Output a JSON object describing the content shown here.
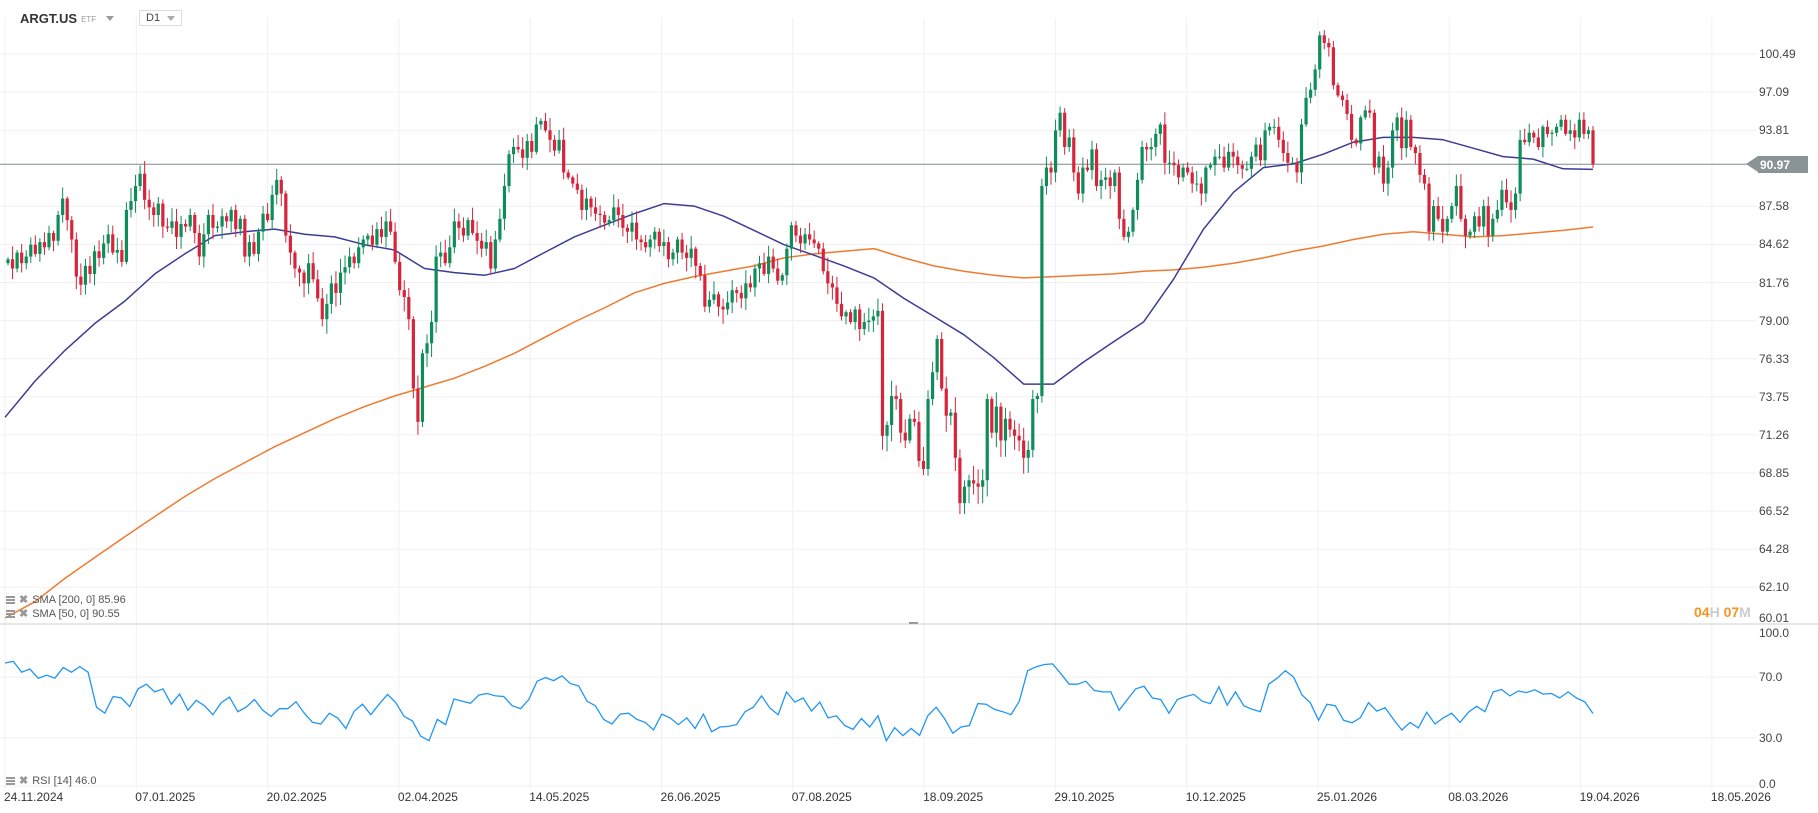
{
  "header": {
    "symbol": "ARGT.US",
    "type": "ETF",
    "timeframe": "D1"
  },
  "timer": {
    "hours": "04",
    "h": "H",
    "minutes": "07",
    "m": "M"
  },
  "colors": {
    "up": "#0e8c5a",
    "down": "#d6243a",
    "sma50": "#3c3c96",
    "sma200": "#f07a30",
    "rsi": "#2196f3",
    "last_price_bg": "#8a9396",
    "timer": "#f7931e"
  },
  "chart_data": [
    {
      "type": "candlestick",
      "y_scale": "log",
      "ylim": [
        60.01,
        103.5
      ],
      "grid": true,
      "y_ticks": [
        "100.49",
        "97.09",
        "93.81",
        "90.97",
        "87.58",
        "84.62",
        "81.76",
        "79.00",
        "76.33",
        "73.75",
        "71.26",
        "68.85",
        "66.52",
        "64.28",
        "62.10",
        "60.01"
      ],
      "x_ticks": [
        "24.11.2024",
        "07.01.2025",
        "20.02.2025",
        "02.04.2025",
        "14.05.2025",
        "26.06.2025",
        "07.08.2025",
        "18.09.2025",
        "29.10.2025",
        "10.12.2025",
        "25.01.2026",
        "08.03.2026",
        "19.04.2026",
        "18.05.2026"
      ],
      "last_price": 90.97,
      "closes": [
        83.5,
        82.8,
        84.0,
        83.2,
        83.7,
        84.6,
        83.9,
        84.8,
        84.4,
        85.5,
        84.9,
        86.9,
        88.2,
        86.5,
        85.0,
        82.2,
        81.6,
        83.0,
        82.4,
        84.1,
        83.6,
        84.7,
        85.4,
        84.0,
        84.2,
        83.3,
        87.3,
        88.0,
        89.2,
        90.2,
        88.1,
        87.5,
        86.9,
        87.8,
        86.0,
        85.9,
        86.4,
        85.2,
        86.2,
        86.0,
        86.9,
        85.5,
        83.7,
        85.4,
        86.9,
        85.9,
        86.0,
        86.8,
        86.4,
        87.3,
        85.8,
        86.6,
        83.7,
        84.8,
        83.9,
        85.6,
        87.0,
        86.5,
        88.5,
        89.7,
        88.6,
        85.3,
        84.0,
        82.8,
        82.5,
        81.7,
        83.2,
        82.0,
        80.6,
        79.1,
        80.2,
        81.7,
        81.0,
        82.5,
        82.9,
        83.7,
        83.2,
        84.4,
        85.0,
        85.3,
        84.6,
        85.8,
        85.2,
        86.4,
        85.6,
        83.3,
        81.2,
        80.7,
        79.1,
        74.3,
        72.1,
        76.7,
        77.4,
        78.9,
        83.7,
        84.0,
        83.2,
        84.4,
        86.4,
        85.9,
        85.3,
        86.5,
        85.5,
        84.9,
        84.3,
        84.8,
        82.8,
        85.0,
        86.6,
        89.2,
        91.8,
        92.4,
        92.2,
        91.5,
        92.9,
        92.0,
        94.3,
        94.6,
        93.8,
        93.0,
        92.1,
        93.0,
        90.3,
        89.9,
        89.4,
        88.9,
        87.3,
        88.2,
        87.5,
        87.0,
        86.9,
        86.3,
        86.5,
        87.5,
        86.9,
        85.9,
        85.6,
        86.3,
        85.0,
        84.8,
        84.4,
        85.0,
        85.6,
        84.5,
        84.8,
        83.5,
        84.0,
        85.0,
        84.0,
        83.6,
        84.3,
        83.0,
        82.3,
        80.0,
        80.5,
        80.9,
        80.0,
        79.8,
        80.3,
        81.2,
        81.0,
        80.6,
        81.7,
        81.4,
        82.8,
        83.2,
        82.4,
        83.7,
        82.8,
        81.9,
        82.3,
        84.3,
        86.1,
        85.3,
        84.7,
        85.4,
        85.0,
        84.7,
        84.3,
        82.6,
        81.7,
        81.4,
        80.2,
        79.3,
        79.6,
        78.9,
        79.8,
        78.4,
        78.9,
        79.0,
        79.3,
        79.7,
        71.2,
        71.9,
        73.8,
        73.6,
        71.4,
        70.9,
        72.3,
        72.1,
        69.6,
        69.1,
        73.6,
        75.4,
        77.7,
        74.3,
        72.5,
        72.7,
        69.8,
        67.0,
        68.0,
        68.4,
        68.2,
        68.0,
        68.4,
        73.6,
        71.4,
        73.1,
        70.9,
        72.3,
        71.6,
        71.2,
        70.9,
        69.8,
        70.3,
        73.6,
        73.8,
        89.2,
        90.7,
        90.3,
        93.8,
        95.3,
        92.4,
        93.2,
        90.3,
        88.6,
        90.7,
        90.5,
        92.2,
        89.2,
        89.7,
        89.9,
        89.2,
        90.3,
        86.6,
        85.2,
        85.6,
        87.3,
        89.7,
        92.4,
        92.2,
        92.4,
        93.5,
        94.3,
        91.1,
        91.1,
        90.9,
        89.9,
        90.7,
        90.3,
        89.4,
        89.4,
        88.6,
        90.7,
        90.9,
        91.6,
        91.6,
        90.7,
        92.0,
        91.6,
        90.9,
        90.6,
        90.6,
        91.6,
        92.6,
        91.3,
        93.8,
        94.1,
        94.1,
        93.0,
        91.9,
        91.1,
        91.1,
        90.3,
        94.3,
        96.6,
        97.3,
        99.1,
        102.2,
        101.5,
        101.1,
        97.7,
        96.8,
        96.4,
        95.2,
        93.0,
        92.7,
        94.9,
        95.5,
        95.3,
        90.7,
        91.6,
        89.4,
        90.7,
        93.8,
        94.9,
        92.3,
        94.7,
        92.4,
        91.9,
        90.1,
        89.4,
        85.6,
        87.6,
        86.6,
        85.6,
        86.6,
        87.6,
        89.2,
        86.6,
        85.3,
        85.6,
        86.8,
        86.0,
        87.6,
        85.3,
        86.6,
        87.3,
        88.9,
        87.9,
        87.3,
        88.6,
        93.0,
        92.8,
        93.6,
        93.2,
        92.4,
        94.1,
        93.5,
        93.6,
        94.1,
        94.7,
        93.5,
        93.8,
        93.2,
        94.7,
        93.5,
        93.8,
        90.97
      ],
      "series": [
        {
          "name": "SMA [200, 0]",
          "value_label": "85.96",
          "values": [
            60.4,
            61.3,
            62.6,
            63.8,
            65.0,
            66.2,
            67.4,
            68.5,
            69.5,
            70.5,
            71.4,
            72.3,
            73.1,
            73.8,
            74.4,
            75.0,
            75.8,
            76.7,
            77.8,
            78.9,
            79.9,
            81.0,
            81.7,
            82.2,
            82.6,
            83.0,
            83.6,
            83.9,
            84.1,
            84.3,
            83.6,
            83.0,
            82.6,
            82.3,
            82.1,
            82.2,
            82.3,
            82.4,
            82.6,
            82.7,
            82.9,
            83.2,
            83.6,
            84.1,
            84.5,
            85.0,
            85.4,
            85.6,
            85.4,
            85.2,
            85.3,
            85.5,
            85.7,
            85.96
          ]
        },
        {
          "name": "SMA [50, 0]",
          "value_label": "90.55",
          "values": [
            72.4,
            74.8,
            76.9,
            78.8,
            80.4,
            82.4,
            83.9,
            85.3,
            85.6,
            85.8,
            85.4,
            85.2,
            84.6,
            84.2,
            82.8,
            82.5,
            82.3,
            82.8,
            84.0,
            85.2,
            86.1,
            87.0,
            87.8,
            87.6,
            86.8,
            85.7,
            84.6,
            83.8,
            83.0,
            82.1,
            80.6,
            79.3,
            78.0,
            76.4,
            74.6,
            74.6,
            76.1,
            77.5,
            78.9,
            82.0,
            85.8,
            88.7,
            90.7,
            91.0,
            91.8,
            92.8,
            93.2,
            93.2,
            93.0,
            92.3,
            91.6,
            91.4,
            90.6,
            90.55
          ]
        }
      ]
    },
    {
      "type": "line",
      "name": "RSI [14]",
      "value_label": "46.0",
      "ylim": [
        0,
        100
      ],
      "y_ticks": [
        "100.0",
        "70.0",
        "30.0",
        "0.0"
      ],
      "values": [
        79.5,
        80.5,
        73.4,
        75.5,
        69.4,
        71.4,
        69.4,
        76.5,
        73.4,
        77.1,
        73.4,
        50.2,
        46.2,
        57.3,
        56.3,
        50.6,
        62.3,
        65.4,
        60.3,
        62.3,
        52.2,
        58.9,
        48.2,
        54.8,
        51.2,
        45.2,
        53.2,
        56.9,
        47.2,
        50.2,
        55.3,
        48.2,
        44.1,
        49.2,
        49.2,
        53.8,
        46.2,
        40.1,
        39.1,
        46.2,
        43.1,
        36.1,
        47.6,
        52.2,
        45.2,
        52.2,
        58.7,
        53.2,
        44.1,
        41.1,
        31.0,
        28.0,
        42.1,
        38.7,
        55.7,
        54.2,
        52.8,
        58.3,
        59.3,
        57.7,
        57.3,
        51.2,
        49.2,
        55.3,
        67.4,
        69.8,
        67.8,
        71.0,
        65.8,
        64.3,
        54.2,
        51.2,
        42.1,
        39.1,
        45.6,
        46.2,
        42.1,
        40.1,
        35.1,
        45.6,
        43.1,
        38.7,
        43.1,
        36.1,
        45.6,
        34.0,
        37.1,
        37.5,
        38.7,
        47.2,
        50.2,
        57.7,
        49.6,
        45.2,
        60.3,
        53.6,
        56.3,
        47.6,
        53.6,
        43.1,
        44.5,
        38.1,
        35.5,
        42.7,
        37.1,
        44.5,
        28.0,
        36.7,
        31.4,
        36.1,
        31.6,
        44.7,
        50.2,
        42.7,
        33.0,
        37.1,
        38.1,
        52.6,
        52.2,
        48.8,
        47.2,
        45.2,
        54.2,
        74.4,
        76.9,
        78.5,
        78.9,
        72.4,
        65.4,
        65.4,
        67.4,
        61.3,
        60.3,
        60.3,
        48.2,
        55.3,
        62.3,
        64.1,
        56.3,
        55.3,
        46.2,
        55.3,
        57.3,
        58.7,
        54.2,
        52.6,
        63.7,
        51.6,
        60.3,
        51.2,
        48.8,
        47.2,
        65.4,
        69.4,
        74.4,
        70.0,
        58.3,
        53.2,
        41.5,
        52.2,
        51.2,
        41.5,
        39.9,
        43.1,
        53.2,
        47.6,
        49.8,
        42.1,
        35.1,
        40.1,
        36.5,
        46.8,
        39.1,
        43.1,
        46.2,
        40.1,
        46.8,
        50.8,
        47.2,
        60.3,
        61.9,
        57.7,
        60.9,
        59.9,
        61.7,
        58.9,
        59.3,
        56.3,
        60.3,
        56.3,
        53.8,
        46.0
      ]
    }
  ]
}
